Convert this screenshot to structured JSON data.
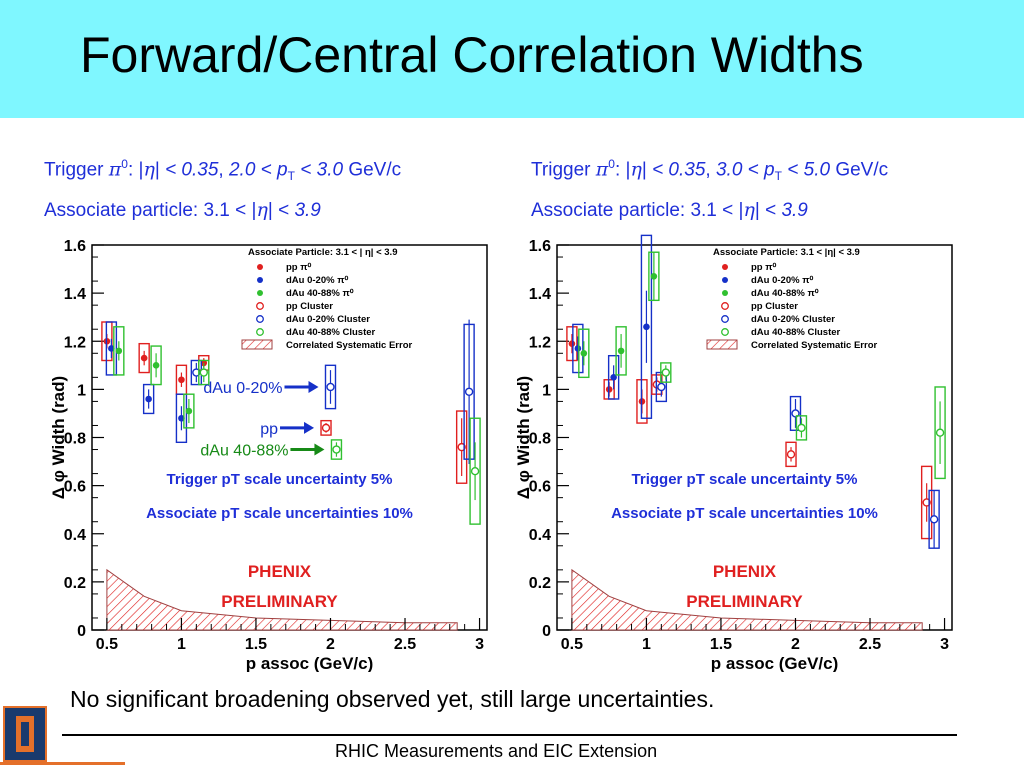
{
  "title": "Forward/Central Correlation Widths",
  "left_header": {
    "trigger": [
      "Trigger ",
      "π",
      "0",
      ": |",
      "η",
      "| ",
      "< 0.35",
      ", ",
      "2.0 < p",
      "T",
      " < 3.0",
      "  GeV/c"
    ],
    "assoc": [
      "Associate particle:  3.1 < |",
      "η",
      "|  <  ",
      "3.9"
    ]
  },
  "right_header": {
    "trigger": [
      "Trigger ",
      "π",
      "0",
      ": |",
      "η",
      "| ",
      "< 0.35",
      ", ",
      "3.0 < p",
      "T",
      " < 5.0",
      "  GeV/c"
    ],
    "assoc": [
      "Associate particle:  3.1 < |",
      "η",
      "|  <  ",
      "3.9"
    ]
  },
  "conclusion": "No significant broadening observed yet,  still large uncertainties.",
  "footer": "RHIC Measurements and EIC Extension",
  "logo_text": "I",
  "colors": {
    "title_bg": "#7ff7ff",
    "blue_text": "#1f2fd8",
    "pp": "#e0201f",
    "dau020": "#1530c8",
    "dau4088": "#30c030",
    "phenix": "#e02020"
  },
  "chart_data": [
    {
      "type": "scatter",
      "panel": "left",
      "xlabel": "p_T assoc (GeV/c)",
      "ylabel": "Δ φ Width (rad)",
      "xlim": [
        0.4,
        3.05
      ],
      "ylim": [
        0,
        1.6
      ],
      "xticks": [
        "0.5",
        "1",
        "1.5",
        "2",
        "2.5",
        "3"
      ],
      "yticks": [
        "0",
        "0.2",
        "0.4",
        "0.6",
        "0.8",
        "1",
        "1.2",
        "1.4",
        "1.6"
      ],
      "legend_title": "Associate Particle: 3.1 < |  η| < 3.9",
      "legend": [
        {
          "label": "pp  π⁰",
          "marker": "filled",
          "color": "#e0201f"
        },
        {
          "label": "dAu 0-20%  π⁰",
          "marker": "filled",
          "color": "#1530c8"
        },
        {
          "label": "dAu 40-88%  π⁰",
          "marker": "filled",
          "color": "#30c030"
        },
        {
          "label": "pp Cluster",
          "marker": "open",
          "color": "#e0201f"
        },
        {
          "label": "dAu 0-20% Cluster",
          "marker": "open",
          "color": "#1530c8"
        },
        {
          "label": "dAu 40-88% Cluster",
          "marker": "open",
          "color": "#30c030"
        },
        {
          "label": "Correlated Systematic Error",
          "marker": "hatch",
          "color": "#e0201f"
        }
      ],
      "series": [
        {
          "name": "pp  π⁰",
          "marker": "filled",
          "color": "#e0201f",
          "points": [
            [
              0.5,
              1.2,
              0.03,
              0.08
            ],
            [
              0.75,
              1.13,
              0.03,
              0.06
            ],
            [
              1.0,
              1.04,
              0.03,
              0.06
            ],
            [
              1.15,
              1.11,
              0.02,
              0.03
            ]
          ]
        },
        {
          "name": "dAu 0-20%  π⁰",
          "marker": "filled",
          "color": "#1530c8",
          "points": [
            [
              0.53,
              1.17,
              0.04,
              0.11
            ],
            [
              0.78,
              0.96,
              0.04,
              0.06
            ],
            [
              1.0,
              0.88,
              0.05,
              0.1
            ]
          ]
        },
        {
          "name": "dAu 40-88%  π⁰",
          "marker": "filled",
          "color": "#30c030",
          "points": [
            [
              0.58,
              1.16,
              0.04,
              0.1
            ],
            [
              0.83,
              1.1,
              0.05,
              0.08
            ],
            [
              1.05,
              0.91,
              0.05,
              0.07
            ]
          ]
        },
        {
          "name": "pp Cluster",
          "marker": "open",
          "color": "#e0201f",
          "points": [
            [
              1.97,
              0.84,
              0.02,
              0.03
            ],
            [
              2.88,
              0.76,
              0.12,
              0.15
            ]
          ]
        },
        {
          "name": "dAu 0-20% Cluster",
          "marker": "open",
          "color": "#1530c8",
          "points": [
            [
              1.1,
              1.07,
              0.04,
              0.05
            ],
            [
              2.0,
              1.01,
              0.07,
              0.09
            ],
            [
              2.93,
              0.99,
              0.3,
              0.28
            ]
          ]
        },
        {
          "name": "dAu 40-88% Cluster",
          "marker": "open",
          "color": "#30c030",
          "points": [
            [
              1.15,
              1.07,
              0.04,
              0.05
            ],
            [
              2.04,
              0.75,
              0.03,
              0.04
            ],
            [
              2.97,
              0.66,
              0.12,
              0.22
            ]
          ]
        }
      ],
      "systematic": [
        [
          0.5,
          0.25
        ],
        [
          0.75,
          0.14
        ],
        [
          1.0,
          0.08
        ],
        [
          1.5,
          0.05
        ],
        [
          2.0,
          0.04
        ],
        [
          2.5,
          0.03
        ],
        [
          2.85,
          0.03
        ]
      ],
      "annotations": [
        {
          "text": "dAu 0-20%",
          "color": "#1530c8",
          "arrow_to": [
            2.0,
            1.01
          ]
        },
        {
          "text": "pp",
          "color": "#1530c8",
          "arrow_to": [
            1.97,
            0.84
          ]
        },
        {
          "text": "dAu 40-88%",
          "color": "#178a17",
          "arrow_to": [
            2.04,
            0.75
          ]
        }
      ],
      "notes": [
        "Trigger pT scale uncertainty 5%",
        "Associate pT scale uncertainties 10%"
      ],
      "stamp": [
        "PHENIX",
        "PRELIMINARY"
      ]
    },
    {
      "type": "scatter",
      "panel": "right",
      "xlabel": "p_T assoc (GeV/c)",
      "ylabel": "Δ φ Width (rad)",
      "xlim": [
        0.4,
        3.05
      ],
      "ylim": [
        0,
        1.6
      ],
      "xticks": [
        "0.5",
        "1",
        "1.5",
        "2",
        "2.5",
        "3"
      ],
      "yticks": [
        "0",
        "0.2",
        "0.4",
        "0.6",
        "0.8",
        "1",
        "1.2",
        "1.4",
        "1.6"
      ],
      "legend_title": "Associate Particle: 3.1 < |η| < 3.9",
      "legend": [
        {
          "label": "pp  π⁰",
          "marker": "filled",
          "color": "#e0201f"
        },
        {
          "label": "dAu 0-20%  π⁰",
          "marker": "filled",
          "color": "#1530c8"
        },
        {
          "label": "dAu 40-88%  π⁰",
          "marker": "filled",
          "color": "#30c030"
        },
        {
          "label": "pp Cluster",
          "marker": "open",
          "color": "#e0201f"
        },
        {
          "label": "dAu 0-20% Cluster",
          "marker": "open",
          "color": "#1530c8"
        },
        {
          "label": "dAu 40-88% Cluster",
          "marker": "open",
          "color": "#30c030"
        },
        {
          "label": "Correlated Systematic Error",
          "marker": "hatch",
          "color": "#e0201f"
        }
      ],
      "series": [
        {
          "name": "pp  π⁰",
          "marker": "filled",
          "color": "#e0201f",
          "points": [
            [
              0.5,
              1.19,
              0.04,
              0.07
            ],
            [
              0.75,
              1.0,
              0.03,
              0.04
            ],
            [
              0.97,
              0.95,
              0.05,
              0.09
            ]
          ]
        },
        {
          "name": "dAu 0-20%  π⁰",
          "marker": "filled",
          "color": "#1530c8",
          "points": [
            [
              0.54,
              1.17,
              0.05,
              0.1
            ],
            [
              0.78,
              1.05,
              0.05,
              0.09
            ],
            [
              1.0,
              1.26,
              0.15,
              0.38
            ]
          ]
        },
        {
          "name": "dAu 40-88%  π⁰",
          "marker": "filled",
          "color": "#30c030",
          "points": [
            [
              0.58,
              1.15,
              0.05,
              0.1
            ],
            [
              0.83,
              1.16,
              0.07,
              0.1
            ],
            [
              1.05,
              1.47,
              0.1,
              0.1
            ]
          ]
        },
        {
          "name": "pp Cluster",
          "marker": "open",
          "color": "#e0201f",
          "points": [
            [
              1.07,
              1.02,
              0.03,
              0.04
            ],
            [
              1.97,
              0.73,
              0.03,
              0.05
            ],
            [
              2.88,
              0.53,
              0.08,
              0.15
            ]
          ]
        },
        {
          "name": "dAu 0-20% Cluster",
          "marker": "open",
          "color": "#1530c8",
          "points": [
            [
              1.1,
              1.01,
              0.04,
              0.06
            ],
            [
              2.0,
              0.9,
              0.06,
              0.07
            ],
            [
              2.93,
              0.46,
              0.12,
              0.12
            ]
          ]
        },
        {
          "name": "dAu 40-88% Cluster",
          "marker": "open",
          "color": "#30c030",
          "points": [
            [
              1.13,
              1.07,
              0.03,
              0.04
            ],
            [
              2.04,
              0.84,
              0.04,
              0.05
            ],
            [
              2.97,
              0.82,
              0.13,
              0.19
            ]
          ]
        }
      ],
      "systematic": [
        [
          0.5,
          0.25
        ],
        [
          0.75,
          0.14
        ],
        [
          1.0,
          0.08
        ],
        [
          1.5,
          0.05
        ],
        [
          2.0,
          0.04
        ],
        [
          2.5,
          0.03
        ],
        [
          2.85,
          0.03
        ]
      ],
      "annotations": [],
      "notes": [
        "Trigger pT scale uncertainty 5%",
        "Associate pT scale uncertainties 10%"
      ],
      "stamp": [
        "PHENIX",
        "PRELIMINARY"
      ]
    }
  ]
}
